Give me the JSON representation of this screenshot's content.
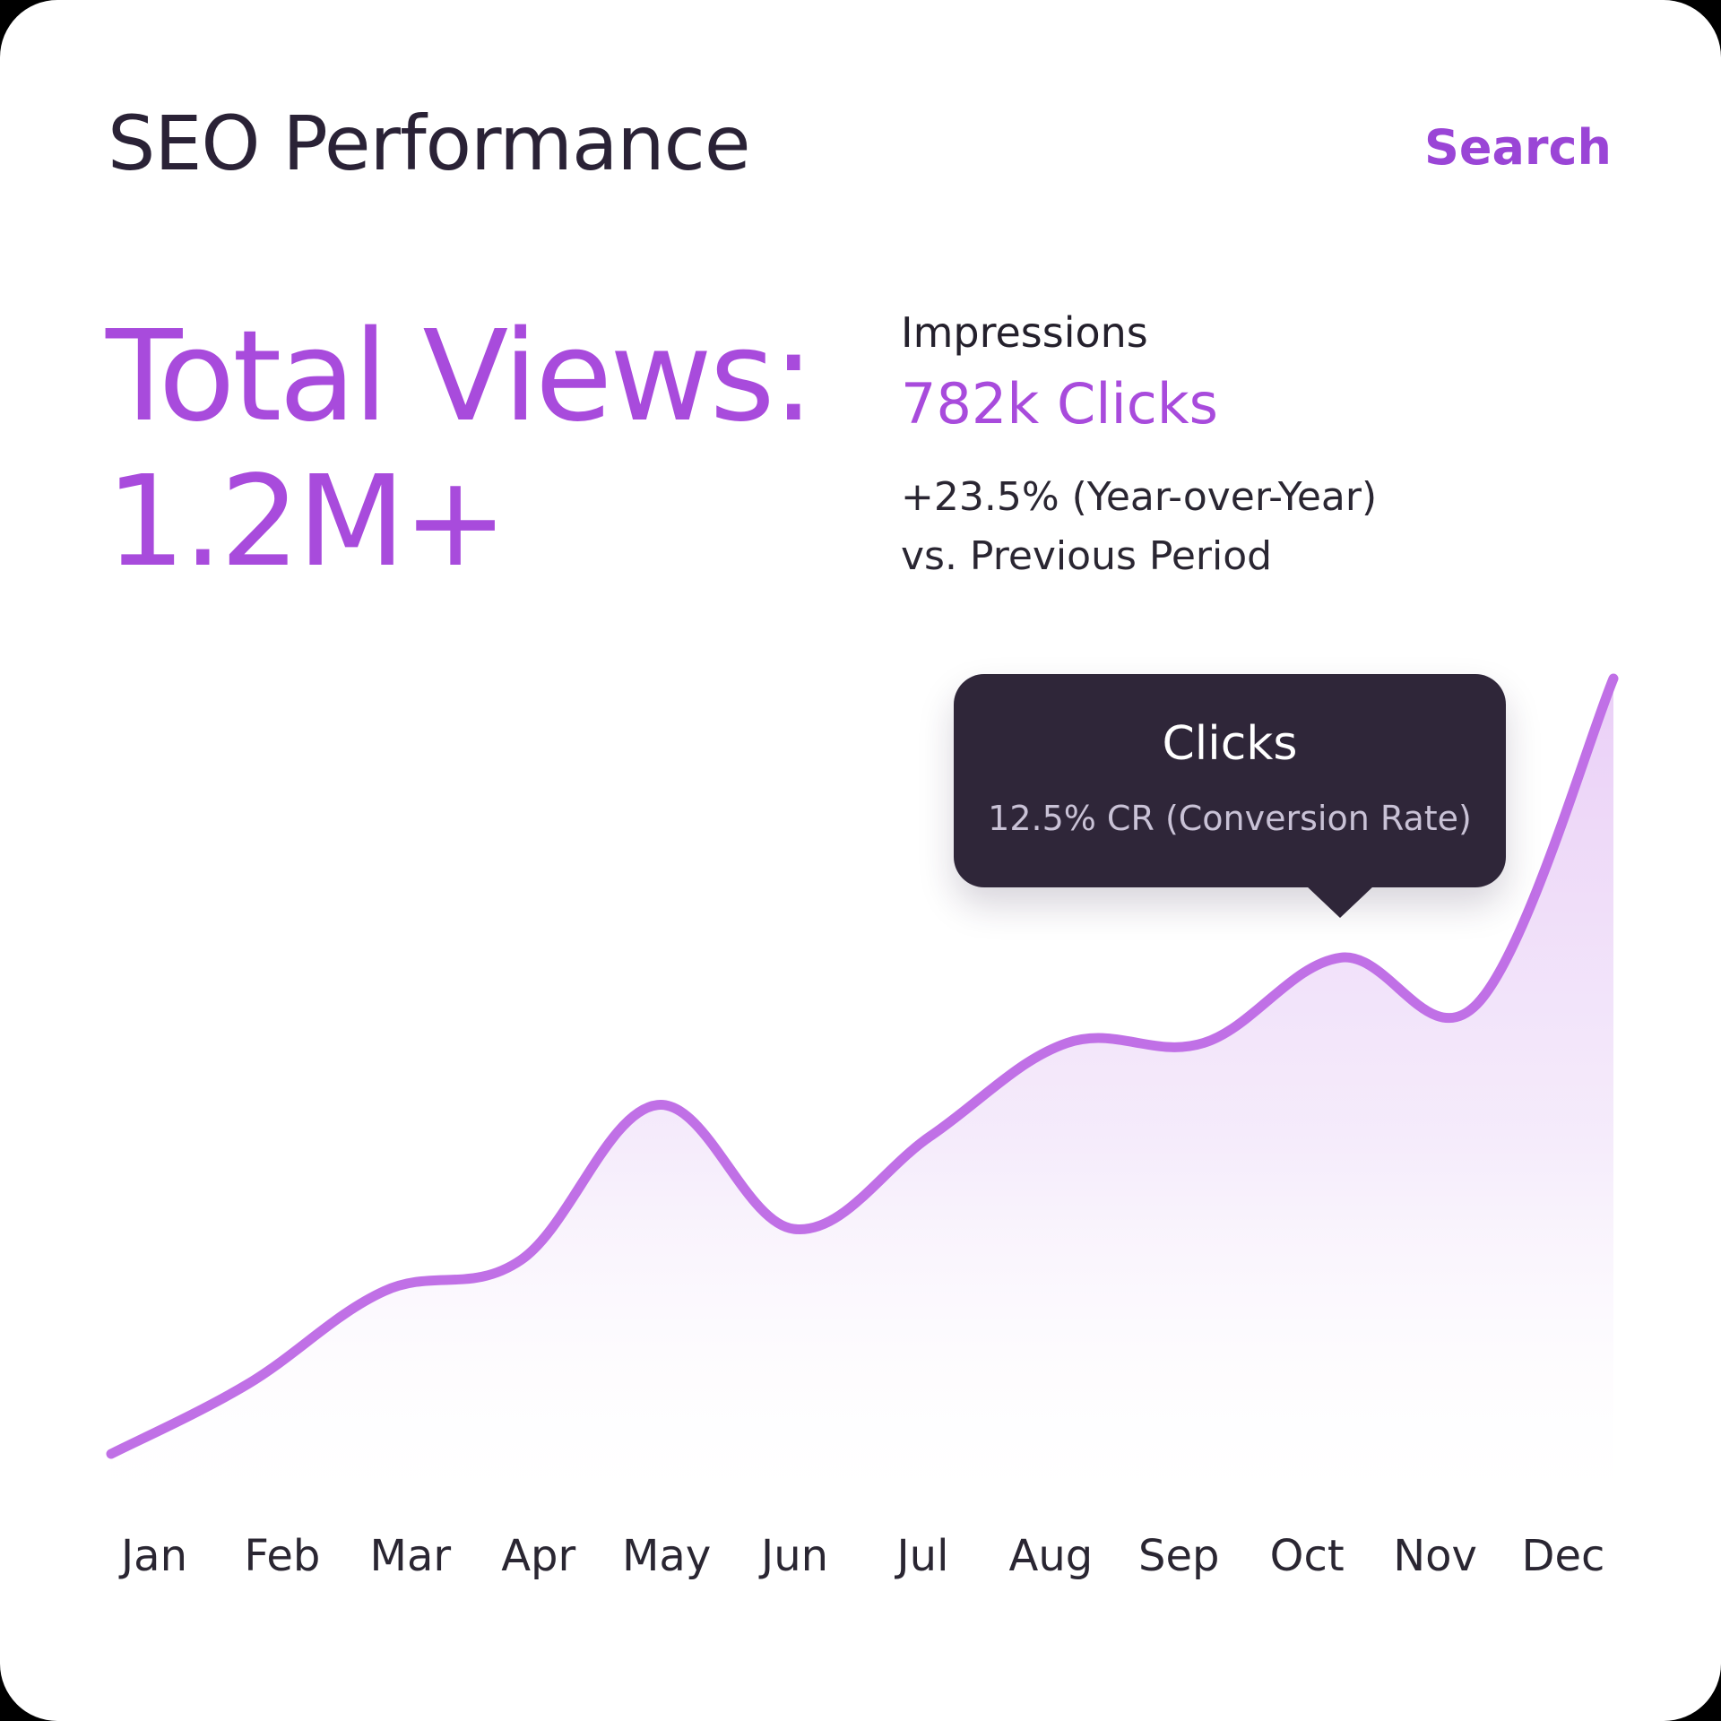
{
  "header": {
    "title": "SEO Performance",
    "search_label": "Search"
  },
  "summary": {
    "total_views_label": "Total Views:",
    "total_views_value": "1.2M+",
    "impressions_label": "Impressions",
    "clicks_value": "782k Clicks",
    "change_line1": "+23.5% (Year-over-Year)",
    "change_line2": "vs. Previous Period"
  },
  "tooltip": {
    "title": "Clicks",
    "detail": "12.5% CR (Conversion Rate)"
  },
  "colors": {
    "accent": "#a84bdc",
    "line": "#c070e6",
    "tooltip_bg": "#2f2639"
  },
  "chart_data": {
    "type": "area",
    "categories": [
      "Jan",
      "Feb",
      "Mar",
      "Apr",
      "May",
      "Jun",
      "Jul",
      "Aug",
      "Sep",
      "Oct",
      "Nov",
      "Dec"
    ],
    "series": [
      {
        "values": [
          0,
          9,
          21,
          25,
          45,
          29,
          41,
          53,
          53,
          64,
          58,
          100
        ]
      }
    ],
    "highlight_index": 9,
    "grid": false
  }
}
